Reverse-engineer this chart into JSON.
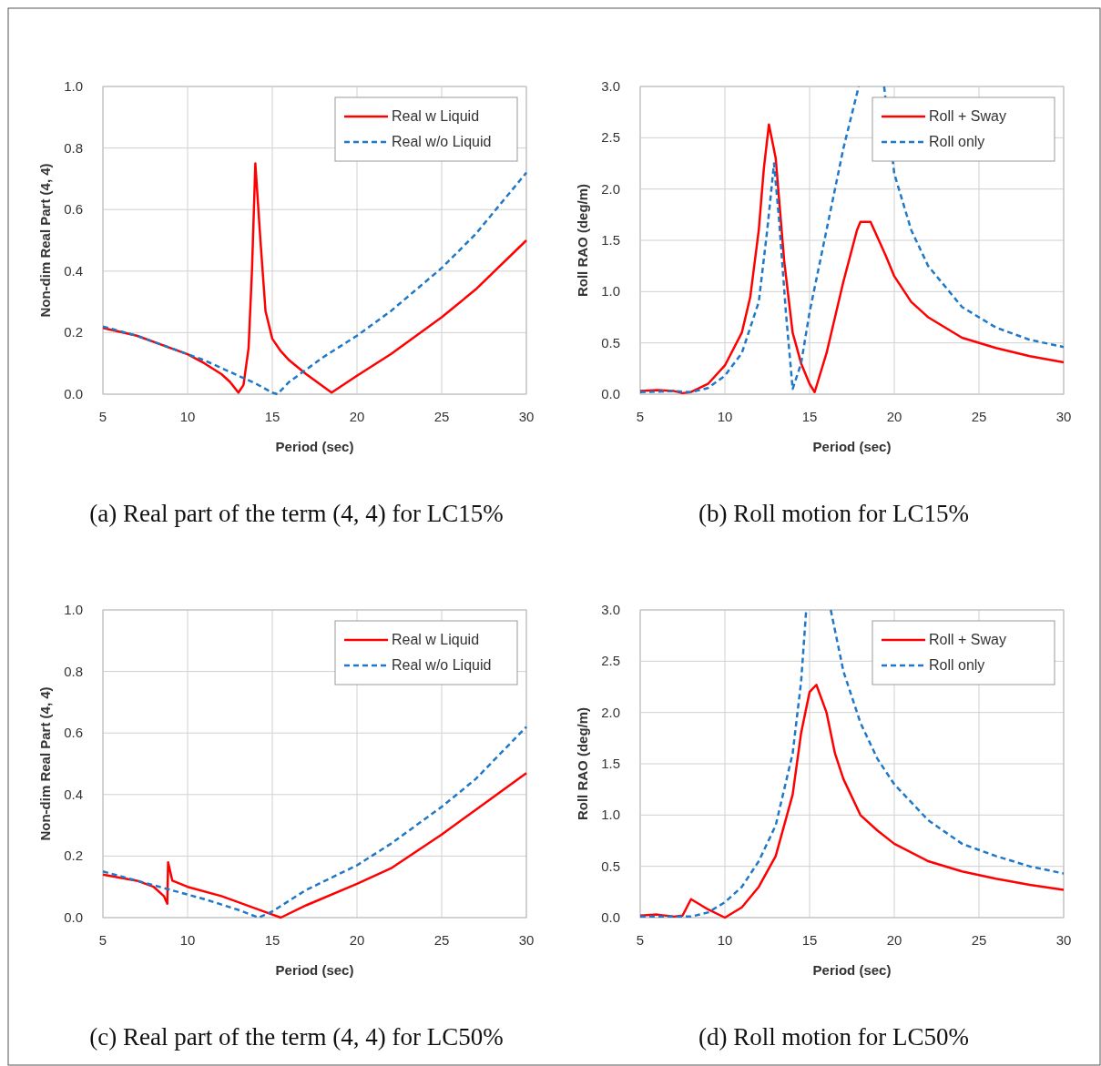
{
  "chart_data": [
    {
      "type": "line",
      "title": "(a) Real part of the term (4, 4) for LC15%",
      "xlabel": "Period (sec)",
      "ylabel": "Non-dim Real Part (4, 4)",
      "xlim": [
        5,
        30
      ],
      "xticks": [
        5,
        10,
        15,
        20,
        25,
        30
      ],
      "ylim": [
        0,
        1
      ],
      "yticks": [
        {
          "value": 0,
          "label": "0.0"
        },
        {
          "value": 0.2,
          "label": "0.2"
        },
        {
          "value": 0.4,
          "label": "0.4"
        },
        {
          "value": 0.6,
          "label": "0.6"
        },
        {
          "value": 0.8,
          "label": "0.8"
        },
        {
          "value": 1,
          "label": "1.0"
        }
      ],
      "grid": true,
      "legend": "top right",
      "series": [
        {
          "name": "Real w Liquid",
          "color": "#ff0000",
          "line_style": "solid",
          "x": [
            5,
            7,
            9,
            10,
            11,
            12,
            12.5,
            13,
            13.3,
            13.6,
            13.8,
            14.0,
            14.3,
            14.6,
            15,
            15.5,
            16,
            17,
            18,
            18.5,
            20,
            22,
            25,
            27,
            30
          ],
          "values": [
            0.215,
            0.19,
            0.15,
            0.13,
            0.1,
            0.065,
            0.04,
            0.005,
            0.03,
            0.15,
            0.4,
            0.75,
            0.5,
            0.27,
            0.18,
            0.14,
            0.11,
            0.065,
            0.025,
            0.005,
            0.06,
            0.13,
            0.25,
            0.34,
            0.5
          ]
        },
        {
          "name": "Real w/o Liquid",
          "color": "#1f78c8",
          "line_style": "dashed",
          "x": [
            5,
            7,
            9,
            11,
            13,
            14,
            15,
            15.3,
            16,
            18,
            20,
            22,
            25,
            27,
            30
          ],
          "values": [
            0.22,
            0.19,
            0.15,
            0.11,
            0.06,
            0.035,
            0.005,
            0.0,
            0.04,
            0.12,
            0.19,
            0.27,
            0.41,
            0.52,
            0.72
          ]
        }
      ]
    },
    {
      "type": "line",
      "title": "(b) Roll motion for LC15%",
      "xlabel": "Period (sec)",
      "ylabel": "Roll RAO (deg/m)",
      "xlim": [
        5,
        30
      ],
      "xticks": [
        5,
        10,
        15,
        20,
        25,
        30
      ],
      "ylim": [
        0,
        3
      ],
      "yticks": [
        {
          "value": 0,
          "label": "0.0"
        },
        {
          "value": 0.5,
          "label": "0.5"
        },
        {
          "value": 1,
          "label": "1.0"
        },
        {
          "value": 1.5,
          "label": "1.5"
        },
        {
          "value": 2,
          "label": "2.0"
        },
        {
          "value": 2.5,
          "label": "2.5"
        },
        {
          "value": 3,
          "label": "3.0"
        }
      ],
      "grid": true,
      "legend": "top right",
      "series": [
        {
          "name": "Roll + Sway",
          "color": "#ff0000",
          "line_style": "solid",
          "x": [
            5,
            6,
            7,
            7.5,
            8,
            9,
            10,
            11,
            11.5,
            12,
            12.3,
            12.6,
            13,
            13.5,
            14,
            14.5,
            15,
            15.3,
            16,
            17,
            17.8,
            18,
            18.6,
            19.5,
            20,
            21,
            22,
            24,
            26,
            28,
            30
          ],
          "values": [
            0.03,
            0.04,
            0.03,
            0.01,
            0.02,
            0.1,
            0.28,
            0.6,
            0.95,
            1.6,
            2.2,
            2.63,
            2.3,
            1.3,
            0.6,
            0.3,
            0.1,
            0.02,
            0.4,
            1.1,
            1.6,
            1.68,
            1.68,
            1.35,
            1.15,
            0.9,
            0.75,
            0.55,
            0.45,
            0.37,
            0.31
          ]
        },
        {
          "name": "Roll only",
          "color": "#1f78c8",
          "line_style": "dashed",
          "x": [
            5,
            7,
            8,
            9,
            10,
            11,
            12,
            12.5,
            12.9,
            13.2,
            13.6,
            14.0,
            14.5,
            15,
            16,
            16.5,
            17,
            17.9,
            18.6,
            19.4,
            20,
            21,
            22,
            24,
            26,
            28,
            30
          ],
          "values": [
            0.02,
            0.03,
            0.02,
            0.06,
            0.18,
            0.4,
            0.9,
            1.6,
            2.25,
            1.7,
            0.8,
            0.05,
            0.3,
            0.8,
            1.6,
            2.0,
            2.4,
            3.0,
            null,
            3.0,
            2.15,
            1.6,
            1.25,
            0.85,
            0.65,
            0.53,
            0.46
          ]
        }
      ]
    },
    {
      "type": "line",
      "title": "(c) Real part of the term (4, 4) for LC50%",
      "xlabel": "Period (sec)",
      "ylabel": "Non-dim Real Part (4, 4)",
      "xlim": [
        5,
        30
      ],
      "xticks": [
        5,
        10,
        15,
        20,
        25,
        30
      ],
      "ylim": [
        0,
        1
      ],
      "yticks": [
        {
          "value": 0,
          "label": "0.0"
        },
        {
          "value": 0.2,
          "label": "0.2"
        },
        {
          "value": 0.4,
          "label": "0.4"
        },
        {
          "value": 0.6,
          "label": "0.6"
        },
        {
          "value": 0.8,
          "label": "0.8"
        },
        {
          "value": 1,
          "label": "1.0"
        }
      ],
      "grid": true,
      "legend": "top right",
      "series": [
        {
          "name": "Real w Liquid",
          "color": "#ff0000",
          "line_style": "solid",
          "x": [
            5,
            7,
            8,
            8.6,
            8.8,
            8.85,
            9.1,
            10,
            12,
            14,
            15,
            15.5,
            17,
            20,
            22,
            25,
            27,
            30
          ],
          "values": [
            0.14,
            0.12,
            0.1,
            0.07,
            0.045,
            0.18,
            0.12,
            0.1,
            0.07,
            0.03,
            0.01,
            0.0,
            0.04,
            0.11,
            0.16,
            0.27,
            0.35,
            0.47
          ]
        },
        {
          "name": "Real w/o Liquid",
          "color": "#1f78c8",
          "line_style": "dashed",
          "x": [
            5,
            7,
            9,
            11,
            13,
            14.2,
            15,
            17,
            20,
            22,
            25,
            27,
            30
          ],
          "values": [
            0.15,
            0.12,
            0.09,
            0.06,
            0.025,
            0.0,
            0.02,
            0.09,
            0.17,
            0.24,
            0.36,
            0.45,
            0.62
          ]
        }
      ]
    },
    {
      "type": "line",
      "title": "(d) Roll motion for LC50%",
      "xlabel": "Period (sec)",
      "ylabel": "Roll RAO (deg/m)",
      "xlim": [
        5,
        30
      ],
      "xticks": [
        5,
        10,
        15,
        20,
        25,
        30
      ],
      "ylim": [
        0,
        3
      ],
      "yticks": [
        {
          "value": 0,
          "label": "0.0"
        },
        {
          "value": 0.5,
          "label": "0.5"
        },
        {
          "value": 1,
          "label": "1.0"
        },
        {
          "value": 1.5,
          "label": "1.5"
        },
        {
          "value": 2,
          "label": "2.0"
        },
        {
          "value": 2.5,
          "label": "2.5"
        },
        {
          "value": 3,
          "label": "3.0"
        }
      ],
      "grid": true,
      "legend": "top right",
      "series": [
        {
          "name": "Roll + Sway",
          "color": "#ff0000",
          "line_style": "solid",
          "x": [
            5,
            6,
            7,
            7.5,
            8,
            9,
            10,
            11,
            12,
            13,
            14,
            14.5,
            15,
            15.4,
            16,
            16.5,
            17,
            18,
            19,
            20,
            22,
            24,
            26,
            28,
            30
          ],
          "values": [
            0.02,
            0.03,
            0.01,
            0.02,
            0.18,
            0.08,
            0.0,
            0.1,
            0.3,
            0.6,
            1.2,
            1.8,
            2.2,
            2.27,
            2.0,
            1.6,
            1.35,
            1.0,
            0.85,
            0.72,
            0.55,
            0.45,
            0.38,
            0.32,
            0.27
          ]
        },
        {
          "name": "Roll only",
          "color": "#1f78c8",
          "line_style": "dashed",
          "x": [
            5,
            8,
            9,
            10,
            11,
            12,
            13,
            14,
            14.5,
            14.8,
            15.5,
            16.25,
            17,
            18,
            19,
            20,
            22,
            24,
            26,
            28,
            30
          ],
          "values": [
            0.01,
            0.01,
            0.05,
            0.15,
            0.3,
            0.55,
            0.9,
            1.6,
            2.3,
            3.0,
            null,
            3.0,
            2.4,
            1.9,
            1.55,
            1.3,
            0.95,
            0.72,
            0.6,
            0.5,
            0.43
          ]
        }
      ]
    }
  ]
}
